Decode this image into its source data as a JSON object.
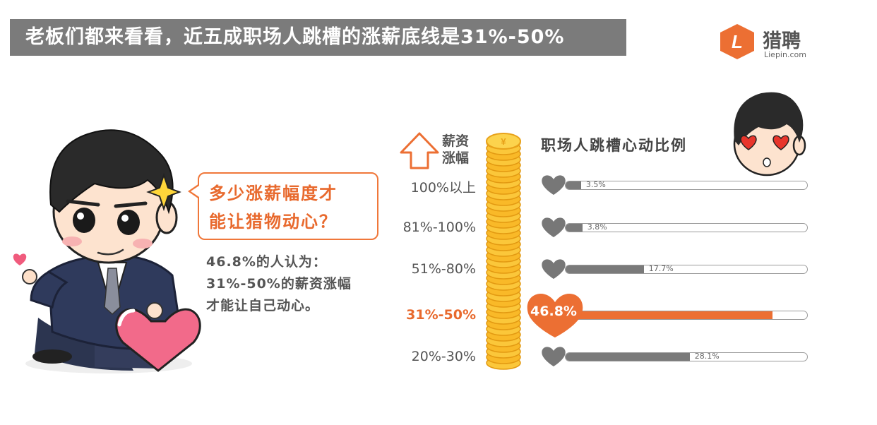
{
  "title": "老板们都来看看，近五成职场人跳槽的涨薪底线是31%-50%",
  "logo": {
    "brand": "猎聘",
    "sub": "Liepin.com",
    "icon": "L"
  },
  "bubble": {
    "text": "多少涨薪幅度才\n能让猎物动心？"
  },
  "description": "46.8%的人认为：\n31%-50%的薪资涨幅\n才能让自己动心。",
  "coin_symbol": "¥",
  "colors": {
    "accent": "#ec6f33",
    "bar": "#7a7a7a",
    "title_bg": "#7b7b7b"
  },
  "chart_data": {
    "type": "bar",
    "title": "职场人跳槽心动比例",
    "xlabel": "薪资\n涨幅",
    "ylabel": "",
    "categories": [
      "100%以上",
      "81%-100%",
      "51%-80%",
      "31%-50%",
      "20%-30%"
    ],
    "values": [
      3.5,
      3.8,
      17.7,
      46.8,
      28.1
    ],
    "value_labels": [
      "3.5%",
      "3.8%",
      "17.7%",
      "46.8%",
      "28.1%"
    ],
    "highlight_index": 3,
    "xlim": [
      0,
      55
    ],
    "orientation": "horizontal",
    "unit": "%"
  }
}
